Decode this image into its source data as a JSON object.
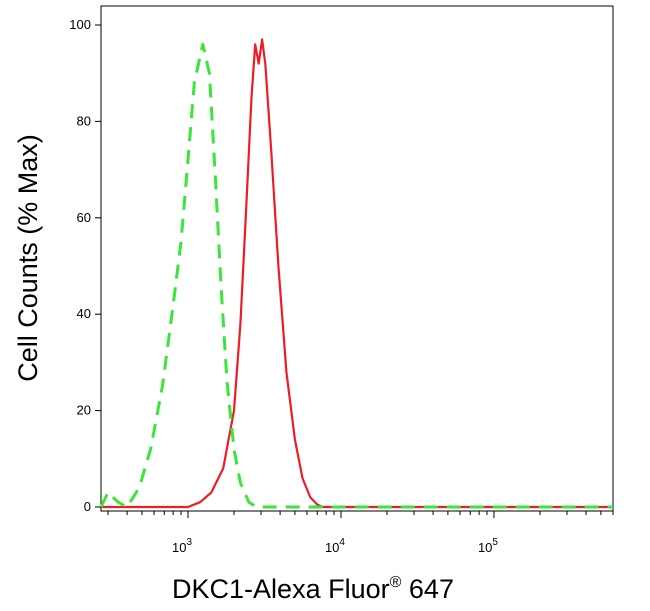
{
  "chart_data": {
    "type": "line",
    "xlabel_main": "DKC1-Alexa Fluor",
    "xlabel_sup": "®",
    "xlabel_end": " 647",
    "ylabel": "Cell Counts (% Max)",
    "x_scale": "log",
    "xlim": [
      270,
      600000
    ],
    "ylim": [
      0,
      100
    ],
    "y_ticks": [
      "0",
      "20",
      "40",
      "60",
      "80",
      "100"
    ],
    "x_ticks": [
      {
        "value": 1000,
        "base": "10",
        "exp": "3"
      },
      {
        "value": 10000,
        "base": "10",
        "exp": "4"
      },
      {
        "value": 100000,
        "base": "10",
        "exp": "5"
      }
    ],
    "grid": false,
    "series": [
      {
        "color": "#ee1c25",
        "style": "solid",
        "x": [
          270,
          1000,
          1200,
          1420,
          1700,
          2000,
          2200,
          2400,
          2600,
          2750,
          2900,
          3050,
          3200,
          3500,
          3900,
          4400,
          5000,
          5600,
          6300,
          7000,
          7600,
          9000,
          20000,
          100000,
          600000
        ],
        "y": [
          0,
          0,
          1,
          3,
          8,
          20,
          38,
          62,
          85,
          96,
          92,
          97,
          92,
          74,
          50,
          28,
          14,
          6,
          2,
          0.5,
          0,
          0,
          0,
          0,
          0
        ]
      },
      {
        "color": "#39e639",
        "style": "dashed",
        "x": [
          270,
          300,
          350,
          400,
          480,
          570,
          680,
          800,
          900,
          1000,
          1100,
          1250,
          1380,
          1500,
          1650,
          1800,
          2000,
          2200,
          2500,
          2800,
          4000,
          10000,
          100000,
          600000
        ],
        "y": [
          0,
          3,
          1,
          0,
          4,
          12,
          25,
          42,
          55,
          72,
          88,
          96,
          90,
          70,
          45,
          26,
          12,
          5,
          1,
          0,
          0,
          0,
          0,
          0
        ]
      }
    ]
  }
}
